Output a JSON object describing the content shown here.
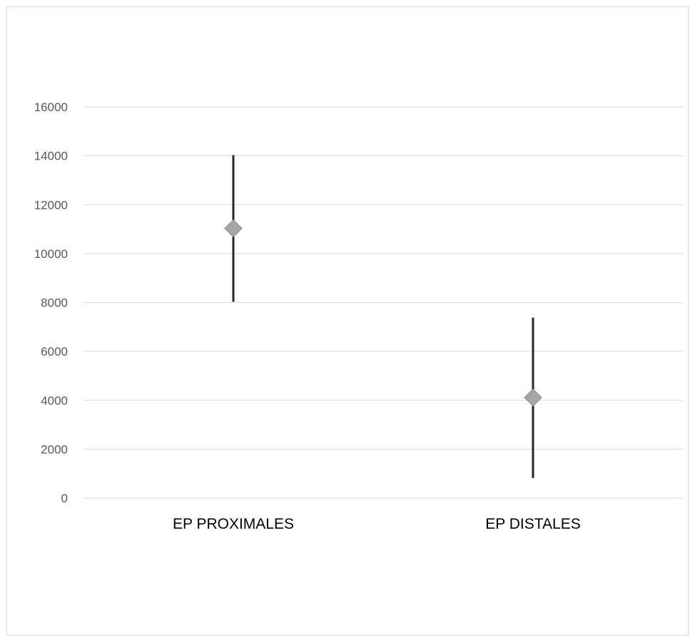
{
  "chart_data": {
    "type": "scatter",
    "title": "",
    "xlabel": "",
    "ylabel": "",
    "ylim": [
      0,
      16000
    ],
    "yticks": [
      0,
      2000,
      4000,
      6000,
      8000,
      10000,
      12000,
      14000,
      16000
    ],
    "grid": true,
    "legend": "none",
    "categories": [
      "EP PROXIMALES",
      "EP DISTALES"
    ],
    "points": [
      {
        "category": "EP PROXIMALES",
        "value": 11030,
        "low": 8030,
        "high": 14030
      },
      {
        "category": "EP DISTALES",
        "value": 4110,
        "low": 820,
        "high": 7380
      }
    ],
    "colors": {
      "marker": "#a6a6a6",
      "marker_edge": "#8c8c8c",
      "error_bar": "#262626",
      "grid": "#d9d9d9",
      "tick_text": "#595959"
    }
  }
}
